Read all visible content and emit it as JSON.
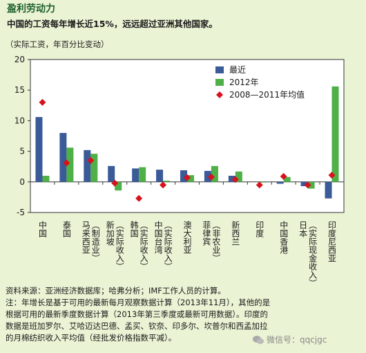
{
  "title": "盈利劳动力",
  "subtitle": "中国的工资每年增长近15%，远远超过亚洲其他国家。",
  "unit": "（实际工资，年百分比变动）",
  "notes": [
    "资料来源：亚洲经济数据库；哈弗分析；IMF工作人员的计算。",
    "注：年增长是基于可用的最新每月观察数据计算（2013年11月），其他的是",
    "根据可用的最新季度数据计算（2013年第三季度或最新可用数据）。印度的",
    "数据是班加罗尔、艾哈迈达巴德、孟买、钦奈、印多尔、坎普尔和西孟加拉",
    "的月棉纺织收入平均值（经批发价格指数平减）。"
  ],
  "watermark": "微信号：qqcjgc",
  "colors": {
    "background": "#eaf3d4",
    "latest": "#3a5a98",
    "y2012": "#4eb047",
    "avg": "#d7121c"
  },
  "chart_data": {
    "type": "bar",
    "ylim": [
      -5,
      20
    ],
    "yticks": [
      -5,
      0,
      5,
      10,
      15,
      20
    ],
    "legend_position": "top-right",
    "grid": false,
    "categories": [
      [
        "中国"
      ],
      [
        "泰国"
      ],
      [
        "马来西亚",
        "（制造业）"
      ],
      [
        "新加坡",
        "（实际收入）"
      ],
      [
        "韩国",
        "（实际收入）"
      ],
      [
        "中国台湾",
        "（实际收入）"
      ],
      [
        "澳大利亚"
      ],
      [
        "菲律宾",
        "（非农业）"
      ],
      [
        "新西兰"
      ],
      [
        "印度"
      ],
      [
        "中国香港"
      ],
      [
        "日本",
        "（实际现金收入）"
      ],
      [
        "印度尼西亚"
      ]
    ],
    "series": [
      {
        "name": "最近",
        "type": "bar",
        "values": [
          10.6,
          8.0,
          5.2,
          2.6,
          2.2,
          2.0,
          1.9,
          1.8,
          1.0,
          null,
          -0.3,
          -0.7,
          -2.7
        ]
      },
      {
        "name": "2012年",
        "type": "bar",
        "values": [
          1.0,
          5.6,
          4.6,
          -1.4,
          2.4,
          0.2,
          1.1,
          2.6,
          1.7,
          -0.1,
          0.8,
          -1.1,
          15.6
        ]
      },
      {
        "name": "2008—2011年均值",
        "type": "marker",
        "values": [
          13.0,
          3.1,
          3.5,
          -0.2,
          -2.7,
          -0.5,
          0.7,
          0.8,
          0.4,
          -0.5,
          0.9,
          -0.5,
          1.1
        ]
      }
    ]
  }
}
